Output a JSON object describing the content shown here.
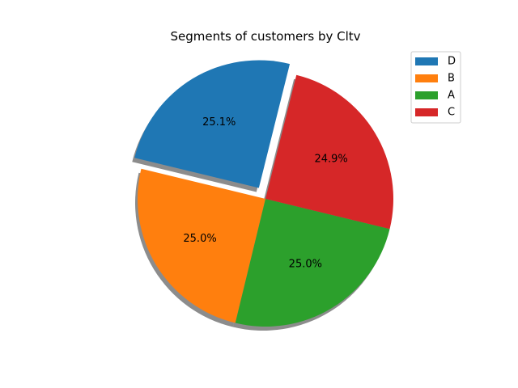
{
  "chart_data": {
    "type": "pie",
    "title": "Segments of customers by Cltv",
    "labels": [
      "D",
      "B",
      "A",
      "C"
    ],
    "values": [
      25.1,
      25.0,
      25.0,
      24.9
    ],
    "value_labels": [
      "25.1%",
      "25.0%",
      "25.0%",
      "24.9%"
    ],
    "colors": [
      "#1f77b4",
      "#ff7f0e",
      "#2ca02c",
      "#d62728"
    ],
    "explode": [
      0.1,
      0,
      0,
      0
    ],
    "shadow": true,
    "start_angle_deg": 76,
    "legend_position": "top-right"
  }
}
